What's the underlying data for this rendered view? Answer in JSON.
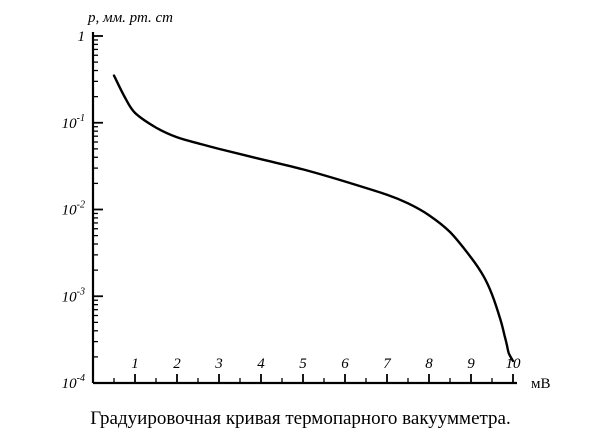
{
  "caption": "Градуировочная кривая термопарного вакуумметра.",
  "chart_data": {
    "type": "line",
    "title": "",
    "xlabel": "мВ",
    "ylabel": "p, мм. рт. ст",
    "xlim": [
      0,
      10
    ],
    "ylim": [
      0.0001,
      1
    ],
    "yscale": "log",
    "grid": false,
    "x_ticks": [
      1,
      2,
      3,
      4,
      5,
      6,
      7,
      8,
      9,
      10
    ],
    "x_tick_labels": [
      "1",
      "2",
      "3",
      "4",
      "5",
      "6",
      "7",
      "8",
      "9",
      "10"
    ],
    "y_ticks": [
      1,
      0.1,
      0.01,
      0.001,
      0.0001
    ],
    "y_tick_labels": [
      {
        "base": "1",
        "exp": ""
      },
      {
        "base": "10",
        "exp": "-1"
      },
      {
        "base": "10",
        "exp": "-2"
      },
      {
        "base": "10",
        "exp": "-3"
      },
      {
        "base": "10",
        "exp": "-4"
      }
    ],
    "series": [
      {
        "x": [
          0.5,
          0.75,
          1.0,
          1.5,
          2.0,
          2.5,
          3.0,
          4.0,
          5.0,
          6.0,
          7.0,
          7.5,
          8.0,
          8.5,
          9.0,
          9.3,
          9.5,
          9.7,
          9.8,
          9.85,
          9.9,
          10.0
        ],
        "y": [
          0.35,
          0.2,
          0.13,
          0.088,
          0.068,
          0.058,
          0.05,
          0.038,
          0.029,
          0.021,
          0.0148,
          0.0118,
          0.0086,
          0.0055,
          0.0028,
          0.0017,
          0.00105,
          0.00054,
          0.00035,
          0.00028,
          0.00022,
          0.00018
        ]
      }
    ]
  }
}
